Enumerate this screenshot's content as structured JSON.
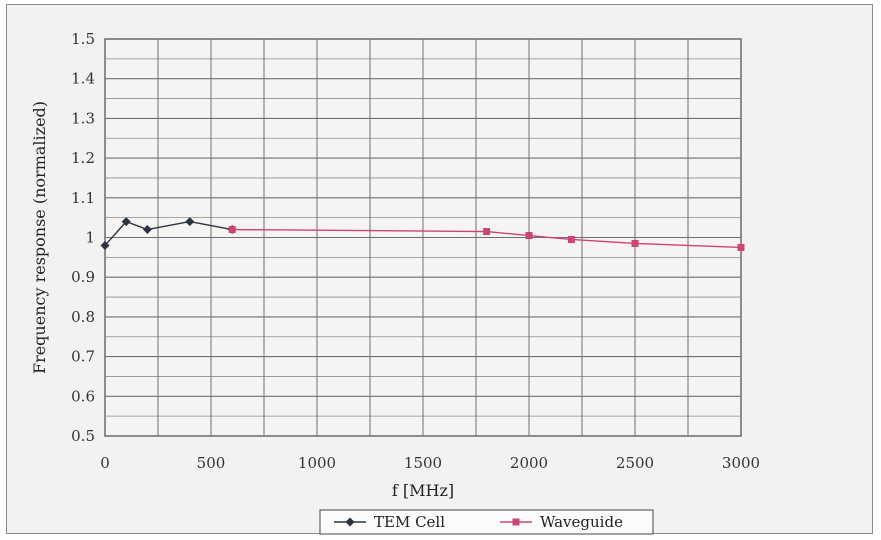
{
  "chart_data": {
    "type": "line",
    "title": "",
    "xlabel": "f [MHz]",
    "ylabel": "Frequency response (normalized)",
    "xlim": [
      0,
      3000
    ],
    "ylim": [
      0.5,
      1.5
    ],
    "x_ticks": [
      0,
      500,
      1000,
      1500,
      2000,
      2500,
      3000
    ],
    "x_tick_labels": [
      "0",
      "500",
      "1000",
      "1500",
      "2000",
      "2500",
      "3000"
    ],
    "y_ticks": [
      0.5,
      0.6,
      0.7,
      0.8,
      0.9,
      1.0,
      1.1,
      1.2,
      1.3,
      1.4,
      1.5
    ],
    "y_tick_labels": [
      "0.5",
      "0.6",
      "0.7",
      "0.8",
      "0.9",
      "1",
      "1.1",
      "1.2",
      "1.3",
      "1.4",
      "1.5"
    ],
    "grid": true,
    "legend_position": "bottom-center",
    "series": [
      {
        "name": "TEM Cell",
        "marker": "diamond",
        "color": "#2b3440",
        "x": [
          0,
          100,
          200,
          400,
          600
        ],
        "y": [
          0.98,
          1.04,
          1.02,
          1.04,
          1.02
        ]
      },
      {
        "name": "Waveguide",
        "marker": "square",
        "color": "#cc4477",
        "x": [
          600,
          1800,
          2000,
          2200,
          2500,
          3000
        ],
        "y": [
          1.02,
          1.015,
          1.005,
          0.995,
          0.985,
          0.975
        ]
      }
    ]
  }
}
